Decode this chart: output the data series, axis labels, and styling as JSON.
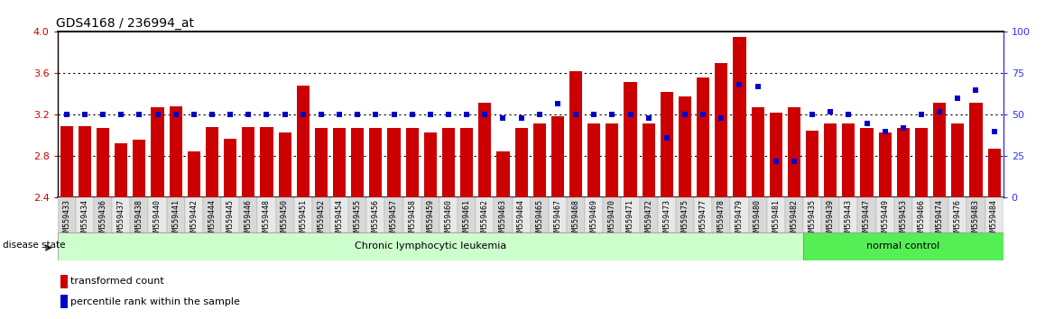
{
  "title": "GDS4168 / 236994_at",
  "ylim_left": [
    2.4,
    4.0
  ],
  "ylim_right": [
    0,
    100
  ],
  "yticks_left": [
    2.4,
    2.8,
    3.2,
    3.6,
    4.0
  ],
  "yticks_right": [
    0,
    25,
    50,
    75,
    100
  ],
  "samples": [
    "GSM559433",
    "GSM559434",
    "GSM559436",
    "GSM559437",
    "GSM559438",
    "GSM559440",
    "GSM559441",
    "GSM559442",
    "GSM559444",
    "GSM559445",
    "GSM559446",
    "GSM559448",
    "GSM559450",
    "GSM559451",
    "GSM559452",
    "GSM559454",
    "GSM559455",
    "GSM559456",
    "GSM559457",
    "GSM559458",
    "GSM559459",
    "GSM559460",
    "GSM559461",
    "GSM559462",
    "GSM559463",
    "GSM559464",
    "GSM559465",
    "GSM559467",
    "GSM559468",
    "GSM559469",
    "GSM559470",
    "GSM559471",
    "GSM559472",
    "GSM559473",
    "GSM559475",
    "GSM559477",
    "GSM559478",
    "GSM559479",
    "GSM559480",
    "GSM559481",
    "GSM559482",
    "GSM559435",
    "GSM559439",
    "GSM559443",
    "GSM559447",
    "GSM559449",
    "GSM559453",
    "GSM559466",
    "GSM559474",
    "GSM559476",
    "GSM559483",
    "GSM559484"
  ],
  "transformed_counts": [
    3.09,
    3.09,
    3.07,
    2.93,
    2.96,
    3.27,
    3.28,
    2.85,
    3.08,
    2.97,
    3.08,
    3.08,
    3.03,
    3.48,
    3.07,
    3.07,
    3.07,
    3.07,
    3.07,
    3.07,
    3.03,
    3.07,
    3.07,
    3.32,
    2.85,
    3.07,
    3.12,
    3.19,
    3.62,
    3.12,
    3.12,
    3.52,
    3.12,
    3.42,
    3.38,
    3.56,
    3.7,
    3.95,
    3.27,
    3.22,
    3.27,
    3.05,
    3.12,
    3.12,
    3.07,
    3.03,
    3.07,
    3.07,
    3.32,
    3.12,
    3.32,
    2.87
  ],
  "percentile_ranks": [
    50,
    50,
    50,
    50,
    50,
    50,
    50,
    50,
    50,
    50,
    50,
    50,
    50,
    50,
    50,
    50,
    50,
    50,
    50,
    50,
    50,
    50,
    50,
    50,
    48,
    48,
    50,
    57,
    50,
    50,
    50,
    50,
    48,
    36,
    50,
    50,
    48,
    68,
    67,
    22,
    22,
    50,
    52,
    50,
    45,
    40,
    42,
    50,
    52,
    60,
    65,
    40
  ],
  "disease_groups": [
    {
      "label": "Chronic lymphocytic leukemia",
      "start": 0,
      "end": 41,
      "color": "#ccffcc"
    },
    {
      "label": "normal control",
      "start": 41,
      "end": 52,
      "color": "#55ee55"
    }
  ],
  "bar_color": "#cc0000",
  "square_color": "#0000cc",
  "title_color": "#000000",
  "left_tick_color": "#cc0000",
  "right_tick_color": "#3333ff",
  "tick_bg_even": "#d8d8d8",
  "tick_bg_odd": "#e8e8e8"
}
